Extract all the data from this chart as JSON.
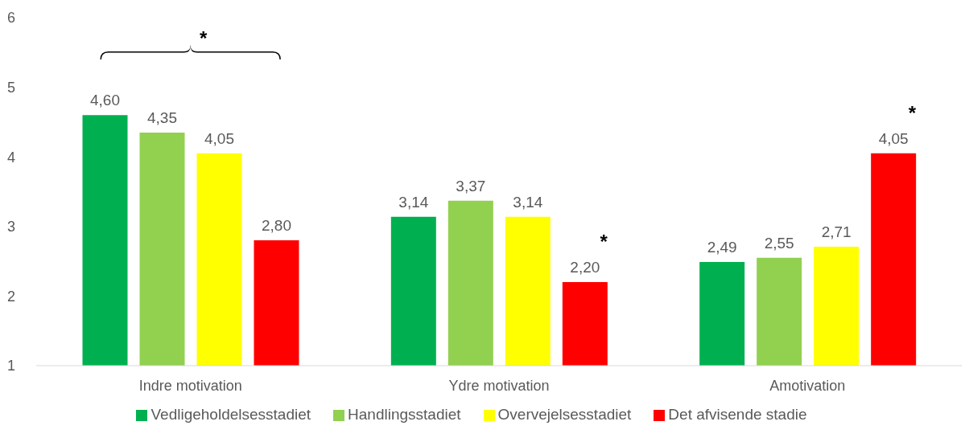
{
  "chart_data": {
    "type": "bar",
    "categories": [
      "Indre motivation",
      "Ydre motivation",
      "Amotivation"
    ],
    "series": [
      {
        "name": "Vedligeholdelsesstadiet",
        "color": "#00b050",
        "values": [
          4.6,
          3.14,
          2.49
        ],
        "value_labels": [
          "4,60",
          "3,14",
          "2,49"
        ]
      },
      {
        "name": "Handlingsstadiet",
        "color": "#92d050",
        "values": [
          4.35,
          3.37,
          2.55
        ],
        "value_labels": [
          "4,35",
          "3,37",
          "2,55"
        ]
      },
      {
        "name": "Overvejelsesstadiet",
        "color": "#ffff00",
        "values": [
          4.05,
          3.14,
          2.71
        ],
        "value_labels": [
          "4,05",
          "3,14",
          "2,71"
        ]
      },
      {
        "name": "Det afvisende stadie",
        "color": "#ff0000",
        "values": [
          2.8,
          2.2,
          4.05
        ],
        "value_labels": [
          "2,80",
          "2,20",
          "4,05"
        ]
      }
    ],
    "ylim": [
      1,
      6
    ],
    "yticks": [
      1,
      2,
      3,
      4,
      5,
      6
    ],
    "grid": false,
    "legend": "bottom",
    "annotations": [
      "*",
      "*",
      "*"
    ]
  }
}
